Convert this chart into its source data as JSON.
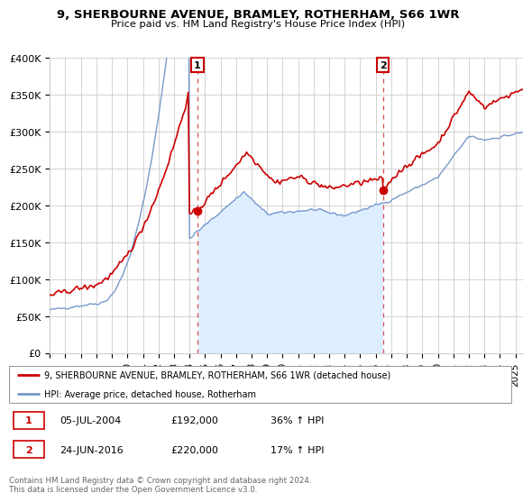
{
  "title": "9, SHERBOURNE AVENUE, BRAMLEY, ROTHERHAM, S66 1WR",
  "subtitle": "Price paid vs. HM Land Registry's House Price Index (HPI)",
  "ylim": [
    0,
    400000
  ],
  "yticks": [
    0,
    50000,
    100000,
    150000,
    200000,
    250000,
    300000,
    350000,
    400000
  ],
  "ytick_labels": [
    "£0",
    "£50K",
    "£100K",
    "£150K",
    "£200K",
    "£250K",
    "£300K",
    "£350K",
    "£400K"
  ],
  "xlim_start": 1995.0,
  "xlim_end": 2025.5,
  "xtick_years": [
    1995,
    1996,
    1997,
    1998,
    1999,
    2000,
    2001,
    2002,
    2003,
    2004,
    2005,
    2006,
    2007,
    2008,
    2009,
    2010,
    2011,
    2012,
    2013,
    2014,
    2015,
    2016,
    2017,
    2018,
    2019,
    2020,
    2021,
    2022,
    2023,
    2024,
    2025
  ],
  "red_line_color": "#cc0000",
  "blue_line_color": "#7799cc",
  "blue_fill_color": "#ddeeff",
  "annotation_box_color": "#cc0000",
  "point1_x": 2004.51,
  "point1_y": 192000,
  "point1_label": "1",
  "point2_x": 2016.46,
  "point2_y": 220000,
  "point2_label": "2",
  "legend_red_label": "9, SHERBOURNE AVENUE, BRAMLEY, ROTHERHAM, S66 1WR (detached house)",
  "legend_blue_label": "HPI: Average price, detached house, Rotherham",
  "annotation1_date": "05-JUL-2004",
  "annotation1_price": "£192,000",
  "annotation1_hpi": "36% ↑ HPI",
  "annotation2_date": "24-JUN-2016",
  "annotation2_price": "£220,000",
  "annotation2_hpi": "17% ↑ HPI",
  "footer": "Contains HM Land Registry data © Crown copyright and database right 2024.\nThis data is licensed under the Open Government Licence v3.0."
}
